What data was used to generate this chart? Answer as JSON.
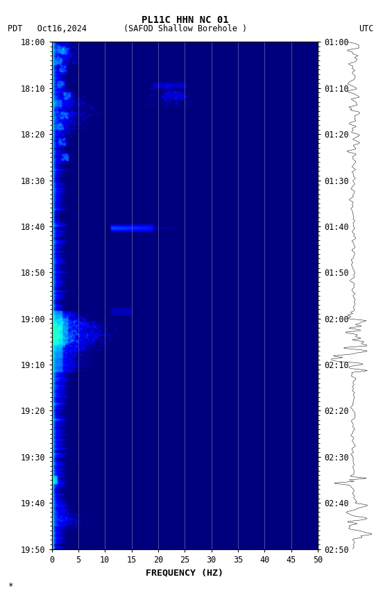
{
  "title_line1": "PL11C HHN NC 01",
  "title_line2_left": "PDT   Oct16,2024     (SAFOD Shallow Borehole )",
  "title_line2_right": "UTC",
  "xlabel": "FREQUENCY (HZ)",
  "freq_min": 0,
  "freq_max": 50,
  "freq_ticks": [
    0,
    5,
    10,
    15,
    20,
    25,
    30,
    35,
    40,
    45,
    50
  ],
  "time_left_labels": [
    "18:00",
    "18:10",
    "18:20",
    "18:30",
    "18:40",
    "18:50",
    "19:00",
    "19:10",
    "19:20",
    "19:30",
    "19:40",
    "19:50"
  ],
  "time_right_labels": [
    "01:00",
    "01:10",
    "01:20",
    "01:30",
    "01:40",
    "01:50",
    "02:00",
    "02:10",
    "02:20",
    "02:30",
    "02:40",
    "02:50"
  ],
  "n_time_steps": 660,
  "n_freq_bins": 250,
  "vgrid_freqs": [
    5,
    10,
    15,
    20,
    25,
    30,
    35,
    40,
    45
  ],
  "colormap": "jet",
  "fig_bg": "white",
  "font_color": "black",
  "font_family": "monospace",
  "vmin_db": -5,
  "vmax_db": 40
}
